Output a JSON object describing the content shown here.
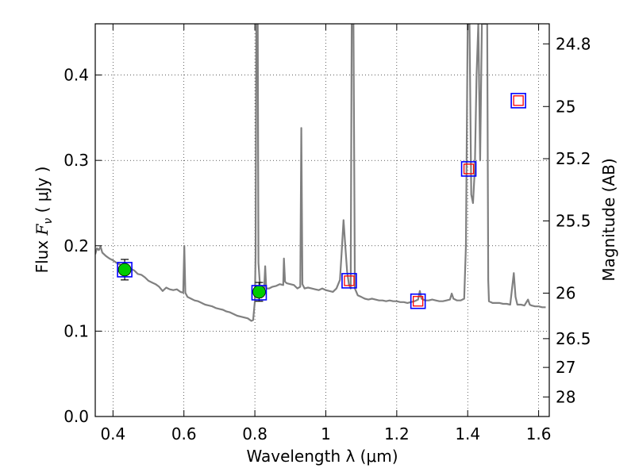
{
  "chart_data": {
    "type": "line",
    "xlabel": "Wavelength  λ (μm)",
    "ylabel": "Flux  F_ν  ( μJy )",
    "ylabel_parts": {
      "prefix": "Flux  ",
      "symbol": "F",
      "subscript": "ν",
      "unit": "  ( μJy )"
    },
    "y2label": "Magnitude (AB)",
    "xlim": [
      0.35,
      1.63
    ],
    "ylim": [
      0.0,
      0.46
    ],
    "grid": true,
    "x_ticks": [
      0.4,
      0.6,
      0.8,
      1.0,
      1.2,
      1.4,
      1.6
    ],
    "x_tick_labels": [
      "0.4",
      "0.6",
      "0.8",
      "1",
      "1.2",
      "1.4",
      "1.6"
    ],
    "y_ticks": [
      0.0,
      0.1,
      0.2,
      0.3,
      0.4
    ],
    "y_tick_labels": [
      "0.0",
      "0.1",
      "0.2",
      "0.3",
      "0.4"
    ],
    "y2_ticks": [
      {
        "label": "24.8",
        "flux": 0.4365
      },
      {
        "label": "25",
        "flux": 0.3631
      },
      {
        "label": "25.2",
        "flux": 0.302
      },
      {
        "label": "25.5",
        "flux": 0.2291
      },
      {
        "label": "26",
        "flux": 0.1445
      },
      {
        "label": "26.5",
        "flux": 0.0912
      },
      {
        "label": "27",
        "flux": 0.0575
      },
      {
        "label": "28",
        "flux": 0.0229
      }
    ],
    "series": [
      {
        "kind": "model-spectrum",
        "color": "#808080",
        "points": [
          [
            0.35,
            0.19
          ],
          [
            0.355,
            0.197
          ],
          [
            0.36,
            0.195
          ],
          [
            0.365,
            0.199
          ],
          [
            0.37,
            0.192
          ],
          [
            0.38,
            0.188
          ],
          [
            0.39,
            0.185
          ],
          [
            0.4,
            0.183
          ],
          [
            0.41,
            0.18
          ],
          [
            0.42,
            0.178
          ],
          [
            0.43,
            0.175
          ],
          [
            0.44,
            0.174
          ],
          [
            0.45,
            0.173
          ],
          [
            0.46,
            0.171
          ],
          [
            0.47,
            0.167
          ],
          [
            0.48,
            0.166
          ],
          [
            0.49,
            0.163
          ],
          [
            0.5,
            0.159
          ],
          [
            0.51,
            0.157
          ],
          [
            0.52,
            0.155
          ],
          [
            0.53,
            0.152
          ],
          [
            0.54,
            0.147
          ],
          [
            0.55,
            0.151
          ],
          [
            0.56,
            0.149
          ],
          [
            0.57,
            0.148
          ],
          [
            0.58,
            0.149
          ],
          [
            0.59,
            0.146
          ],
          [
            0.598,
            0.145
          ],
          [
            0.601,
            0.2
          ],
          [
            0.604,
            0.145
          ],
          [
            0.61,
            0.14
          ],
          [
            0.62,
            0.138
          ],
          [
            0.63,
            0.136
          ],
          [
            0.64,
            0.135
          ],
          [
            0.65,
            0.133
          ],
          [
            0.66,
            0.131
          ],
          [
            0.67,
            0.13
          ],
          [
            0.68,
            0.129
          ],
          [
            0.69,
            0.127
          ],
          [
            0.7,
            0.126
          ],
          [
            0.71,
            0.125
          ],
          [
            0.72,
            0.123
          ],
          [
            0.73,
            0.122
          ],
          [
            0.74,
            0.12
          ],
          [
            0.75,
            0.118
          ],
          [
            0.76,
            0.117
          ],
          [
            0.77,
            0.116
          ],
          [
            0.78,
            0.115
          ],
          [
            0.79,
            0.112
          ],
          [
            0.795,
            0.113
          ],
          [
            0.8,
            0.135
          ],
          [
            0.802,
            0.19
          ],
          [
            0.804,
            0.46
          ],
          [
            0.808,
            0.46
          ],
          [
            0.81,
            0.18
          ],
          [
            0.815,
            0.15
          ],
          [
            0.82,
            0.145
          ],
          [
            0.826,
            0.148
          ],
          [
            0.829,
            0.176
          ],
          [
            0.832,
            0.15
          ],
          [
            0.84,
            0.15
          ],
          [
            0.85,
            0.152
          ],
          [
            0.86,
            0.153
          ],
          [
            0.87,
            0.155
          ],
          [
            0.88,
            0.154
          ],
          [
            0.882,
            0.185
          ],
          [
            0.885,
            0.158
          ],
          [
            0.89,
            0.156
          ],
          [
            0.9,
            0.155
          ],
          [
            0.91,
            0.154
          ],
          [
            0.92,
            0.15
          ],
          [
            0.928,
            0.152
          ],
          [
            0.931,
            0.338
          ],
          [
            0.934,
            0.155
          ],
          [
            0.94,
            0.15
          ],
          [
            0.95,
            0.151
          ],
          [
            0.96,
            0.15
          ],
          [
            0.97,
            0.149
          ],
          [
            0.98,
            0.148
          ],
          [
            0.99,
            0.15
          ],
          [
            1.0,
            0.148
          ],
          [
            1.01,
            0.147
          ],
          [
            1.02,
            0.146
          ],
          [
            1.03,
            0.15
          ],
          [
            1.04,
            0.16
          ],
          [
            1.045,
            0.195
          ],
          [
            1.05,
            0.23
          ],
          [
            1.055,
            0.2
          ],
          [
            1.06,
            0.17
          ],
          [
            1.065,
            0.155
          ],
          [
            1.07,
            0.15
          ],
          [
            1.073,
            0.46
          ],
          [
            1.078,
            0.46
          ],
          [
            1.082,
            0.15
          ],
          [
            1.09,
            0.142
          ],
          [
            1.1,
            0.14
          ],
          [
            1.11,
            0.138
          ],
          [
            1.12,
            0.137
          ],
          [
            1.13,
            0.138
          ],
          [
            1.14,
            0.137
          ],
          [
            1.15,
            0.136
          ],
          [
            1.16,
            0.136
          ],
          [
            1.17,
            0.135
          ],
          [
            1.18,
            0.136
          ],
          [
            1.19,
            0.135
          ],
          [
            1.2,
            0.135
          ],
          [
            1.21,
            0.134
          ],
          [
            1.22,
            0.134
          ],
          [
            1.23,
            0.133
          ],
          [
            1.24,
            0.134
          ],
          [
            1.25,
            0.135
          ],
          [
            1.26,
            0.137
          ],
          [
            1.265,
            0.147
          ],
          [
            1.27,
            0.138
          ],
          [
            1.28,
            0.136
          ],
          [
            1.29,
            0.136
          ],
          [
            1.3,
            0.137
          ],
          [
            1.31,
            0.136
          ],
          [
            1.32,
            0.135
          ],
          [
            1.33,
            0.135
          ],
          [
            1.34,
            0.136
          ],
          [
            1.35,
            0.137
          ],
          [
            1.355,
            0.144
          ],
          [
            1.36,
            0.138
          ],
          [
            1.37,
            0.136
          ],
          [
            1.38,
            0.136
          ],
          [
            1.39,
            0.138
          ],
          [
            1.395,
            0.2
          ],
          [
            1.4,
            0.46
          ],
          [
            1.405,
            0.46
          ],
          [
            1.41,
            0.26
          ],
          [
            1.415,
            0.25
          ],
          [
            1.42,
            0.29
          ],
          [
            1.425,
            0.4
          ],
          [
            1.43,
            0.46
          ],
          [
            1.435,
            0.3
          ],
          [
            1.44,
            0.46
          ],
          [
            1.445,
            0.46
          ],
          [
            1.455,
            0.46
          ],
          [
            1.458,
            0.16
          ],
          [
            1.46,
            0.135
          ],
          [
            1.47,
            0.133
          ],
          [
            1.48,
            0.133
          ],
          [
            1.49,
            0.133
          ],
          [
            1.5,
            0.132
          ],
          [
            1.51,
            0.132
          ],
          [
            1.52,
            0.131
          ],
          [
            1.525,
            0.15
          ],
          [
            1.53,
            0.168
          ],
          [
            1.535,
            0.14
          ],
          [
            1.54,
            0.131
          ],
          [
            1.55,
            0.131
          ],
          [
            1.56,
            0.13
          ],
          [
            1.57,
            0.137
          ],
          [
            1.575,
            0.131
          ],
          [
            1.58,
            0.13
          ],
          [
            1.59,
            0.129
          ],
          [
            1.6,
            0.129
          ],
          [
            1.61,
            0.128
          ],
          [
            1.62,
            0.128
          ]
        ]
      },
      {
        "kind": "observed-photometry",
        "marker": "circle",
        "color": "#00cc00",
        "points": [
          {
            "x": 0.433,
            "y": 0.172,
            "yerr": 0.012
          },
          {
            "x": 0.812,
            "y": 0.146,
            "yerr": 0.011
          }
        ]
      },
      {
        "kind": "model-photometry",
        "marker": "square",
        "color": "#0000ff",
        "points": [
          {
            "x": 0.433,
            "y": 0.172
          },
          {
            "x": 0.812,
            "y": 0.145
          },
          {
            "x": 1.066,
            "y": 0.159
          },
          {
            "x": 1.26,
            "y": 0.135
          },
          {
            "x": 1.403,
            "y": 0.29
          },
          {
            "x": 1.543,
            "y": 0.37
          }
        ]
      },
      {
        "kind": "upper-limit-photometry",
        "marker": "square",
        "color": "#ff0000",
        "points": [
          {
            "x": 1.066,
            "y": 0.159
          },
          {
            "x": 1.26,
            "y": 0.135
          },
          {
            "x": 1.403,
            "y": 0.29
          },
          {
            "x": 1.543,
            "y": 0.37
          }
        ]
      }
    ]
  }
}
